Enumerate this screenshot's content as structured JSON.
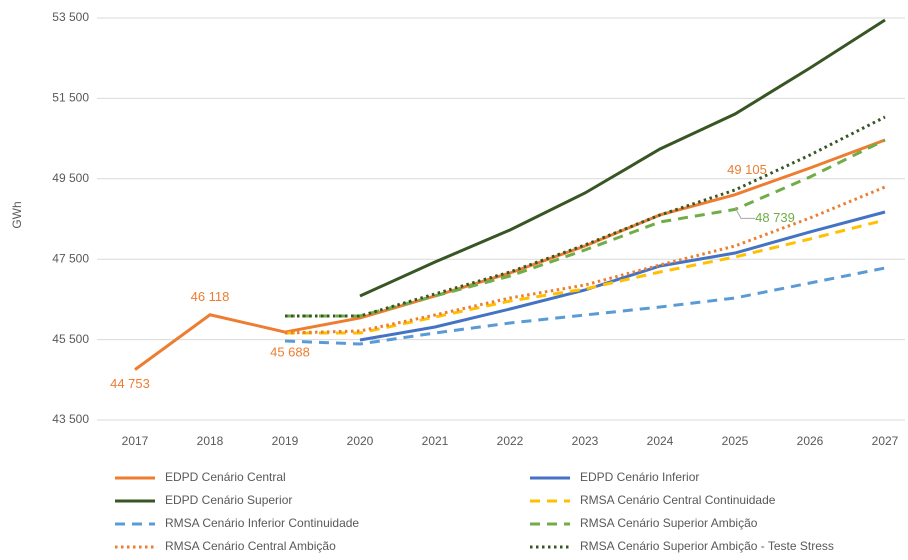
{
  "chart_data": {
    "type": "line",
    "y_label": "GWh",
    "categories": [
      "2017",
      "2018",
      "2019",
      "2020",
      "2021",
      "2022",
      "2023",
      "2024",
      "2025",
      "2026",
      "2027"
    ],
    "ylim": [
      43500,
      53500
    ],
    "yticks": [
      {
        "value": 43500,
        "label": "43 500"
      },
      {
        "value": 45500,
        "label": "45 500"
      },
      {
        "value": 47500,
        "label": "47 500"
      },
      {
        "value": 49500,
        "label": "49 500"
      },
      {
        "value": 51500,
        "label": "51 500"
      },
      {
        "value": 53500,
        "label": "53 500"
      }
    ],
    "grid": true,
    "series": [
      {
        "name": "EDPD Cenário Central",
        "color": "#ed7d31",
        "style": "solid",
        "values": [
          44753,
          46118,
          45688,
          46038,
          46585,
          47157,
          47829,
          48600,
          49105,
          49769,
          50465
        ],
        "value_labels": [
          "44 753",
          "46 118",
          "45 688",
          null,
          null,
          null,
          null,
          null,
          "49 105",
          null,
          null
        ]
      },
      {
        "name": "EDPD Cenário Inferior",
        "color": "#4472c4",
        "style": "solid",
        "values": [
          null,
          null,
          null,
          45490,
          45813,
          46261,
          46734,
          47331,
          47654,
          48177,
          48674
        ]
      },
      {
        "name": "EDPD Cenário Superior",
        "color": "#375623",
        "style": "solid",
        "values": [
          null,
          null,
          null,
          46585,
          47430,
          48227,
          49147,
          50241,
          51112,
          52256,
          53450
        ]
      },
      {
        "name": "RMSA Cenário Central Continuidade",
        "color": "#ffc000",
        "style": "dashed",
        "values": [
          null,
          null,
          45664,
          45664,
          46062,
          46460,
          46759,
          47182,
          47555,
          48003,
          48475
        ]
      },
      {
        "name": "RMSA Cenário Inferior Continuidade",
        "color": "#5b9bd5",
        "style": "dashed",
        "values": [
          null,
          null,
          45465,
          45391,
          45664,
          45913,
          46112,
          46311,
          46535,
          46908,
          47281
        ]
      },
      {
        "name": "RMSA Cenário Superior Ambição",
        "color": "#70ad47",
        "style": "dashed",
        "values": [
          null,
          null,
          46087,
          46087,
          46585,
          47082,
          47729,
          48426,
          48739,
          49545,
          50465
        ],
        "value_labels": [
          null,
          null,
          null,
          null,
          null,
          null,
          null,
          null,
          "48 739",
          null,
          null
        ]
      },
      {
        "name": "RMSA Cenário Central Ambição",
        "color": "#ed7d31",
        "style": "dotted",
        "values": [
          null,
          null,
          45664,
          45714,
          46112,
          46535,
          46858,
          47356,
          47829,
          48525,
          49296
        ]
      },
      {
        "name": "RMSA Cenário Superior Ambição - Teste Stress",
        "color": "#375623",
        "style": "dotted",
        "values": [
          null,
          null,
          46087,
          46087,
          46635,
          47182,
          47854,
          48600,
          49222,
          50092,
          51037
        ]
      }
    ]
  }
}
